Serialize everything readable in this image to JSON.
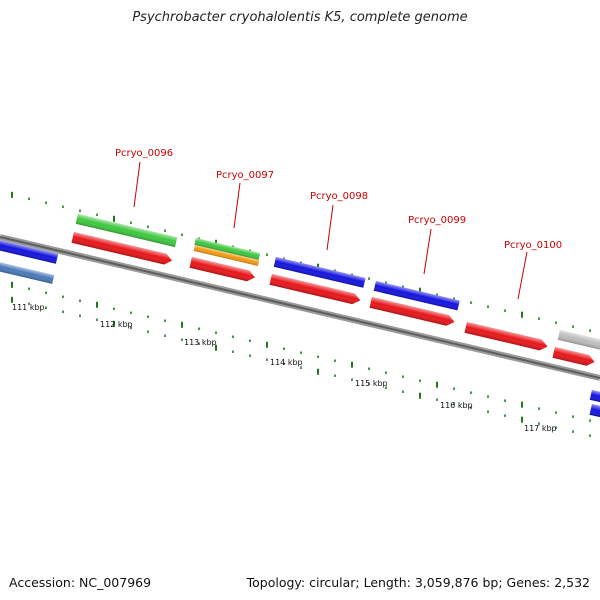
{
  "header": {
    "title": "Psychrobacter cryohalolentis K5, complete genome"
  },
  "footer": {
    "accession_label": "Accession: NC_007969",
    "summary": "Topology: circular; Length: 3,059,876 bp; Genes: 2,532"
  },
  "colors": {
    "backbone": "#7a7a7a",
    "ticks": "#1f7a1f",
    "cds_red": "#e8161a",
    "gene_blue": "#1414e0",
    "gene_green": "#3fc83f",
    "gene_orange": "#f39a12",
    "gene_gray": "#bdbdbd",
    "steel_blue": "#4a7ab8",
    "label_red": "#cc0000"
  },
  "map": {
    "kbp_labels": [
      "111 kbp",
      "112 kbp",
      "113 kbp",
      "114 kbp",
      "115 kbp",
      "116 kbp",
      "117 kbp"
    ],
    "gene_labels": [
      "Pcryo_0096",
      "Pcryo_0097",
      "Pcryo_0098",
      "Pcryo_0099",
      "Pcryo_0100"
    ]
  }
}
